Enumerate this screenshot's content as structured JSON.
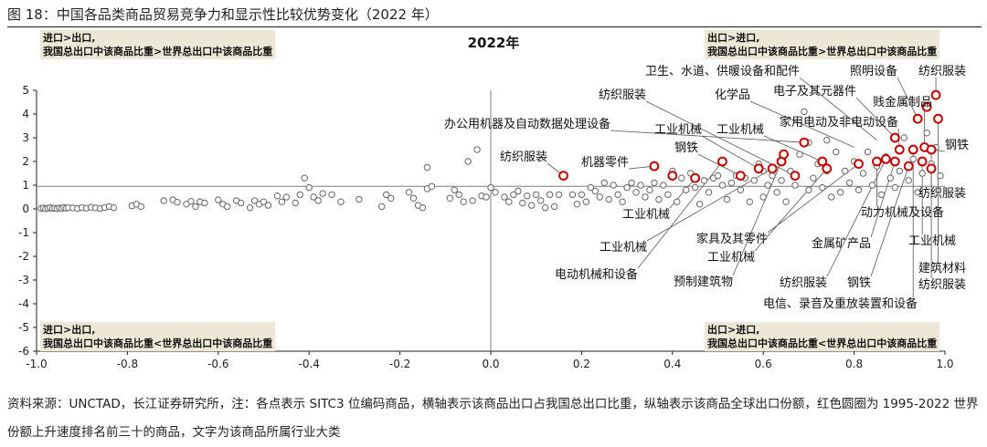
{
  "figure_title": "图 18：中国各品类商品贸易竞争力和显示性比较优势变化（2022 年）",
  "source_note": "资料来源：UNCTAD，长江证券研究所，注：各点表示 SITC3 位编码商品，横轴表示该商品出口占我国总出口比重，纵轴表示该商品全球出口份额，红色圆圈为 1995-2022 世界份额上升速度排名前三十的商品，文字为该商品所属行业大类",
  "quadrants": {
    "top_left": {
      "line1": "进口>出口,",
      "line2": "我国总出口中该商品比重>世界总出口中该商品比重"
    },
    "top_right": {
      "line1": "出口>进口,",
      "line2": "我国总出口中该商品比重>世界总出口中该商品比重"
    },
    "bottom_left": {
      "line1": "进口>出口,",
      "line2": "我国总出口中该商品比重<世界总出口中该商品比重"
    },
    "bottom_right": {
      "line1": "出口>进口,",
      "line2": "我国总出口中该商品比重<世界总出口中该商品比重"
    }
  },
  "colors": {
    "highlight": "#c00000",
    "point": "#666666",
    "axis": "#7f7f7f",
    "label_box": "#ece7d7"
  },
  "chart_data": {
    "type": "scatter",
    "title": "2022年",
    "xlabel": "",
    "ylabel": "",
    "xlim": [
      -1.0,
      1.0
    ],
    "ylim": [
      -6,
      5
    ],
    "xticks": [
      "-1.0",
      "-0.8",
      "-0.6",
      "-0.4",
      "-0.2",
      "0.0",
      "0.2",
      "0.4",
      "0.6",
      "0.8",
      "1.0"
    ],
    "yticks": [
      "5",
      "4",
      "3",
      "2",
      "1",
      "0",
      "-1",
      "-2",
      "-3",
      "-4",
      "-5",
      "-6"
    ],
    "grid": false,
    "series": [
      {
        "points": [
          [
            -0.99,
            0.02
          ],
          [
            -0.985,
            0.04
          ],
          [
            -0.98,
            0.01
          ],
          [
            -0.975,
            0.03
          ],
          [
            -0.97,
            0.05
          ],
          [
            -0.965,
            0.02
          ],
          [
            -0.96,
            0.03
          ],
          [
            -0.955,
            0.01
          ],
          [
            -0.95,
            0.04
          ],
          [
            -0.945,
            0.02
          ],
          [
            -0.94,
            0.06
          ],
          [
            -0.935,
            0.03
          ],
          [
            -0.93,
            0.05
          ],
          [
            -0.92,
            0.04
          ],
          [
            -0.91,
            0.02
          ],
          [
            -0.9,
            0.05
          ],
          [
            -0.89,
            0.03
          ],
          [
            -0.88,
            0.07
          ],
          [
            -0.87,
            0.04
          ],
          [
            -0.86,
            0.02
          ],
          [
            -0.85,
            0.06
          ],
          [
            -0.84,
            0.1
          ],
          [
            -0.83,
            0.05
          ],
          [
            -0.79,
            0.13
          ],
          [
            -0.78,
            0.2
          ],
          [
            -0.77,
            0.1
          ],
          [
            -0.72,
            0.35
          ],
          [
            -0.7,
            0.38
          ],
          [
            -0.69,
            0.28
          ],
          [
            -0.67,
            0.2
          ],
          [
            -0.66,
            0.32
          ],
          [
            -0.65,
            0.1
          ],
          [
            -0.64,
            0.3
          ],
          [
            -0.63,
            0.25
          ],
          [
            -0.6,
            0.38
          ],
          [
            -0.59,
            0.2
          ],
          [
            -0.58,
            0.1
          ],
          [
            -0.56,
            0.35
          ],
          [
            -0.55,
            0.25
          ],
          [
            -0.53,
            0.05
          ],
          [
            -0.52,
            0.35
          ],
          [
            -0.51,
            0.2
          ],
          [
            -0.5,
            0.3
          ],
          [
            -0.49,
            0.15
          ],
          [
            -0.47,
            0.55
          ],
          [
            -0.46,
            0.3
          ],
          [
            -0.45,
            0.5
          ],
          [
            -0.43,
            0.25
          ],
          [
            -0.42,
            0.6
          ],
          [
            -0.41,
            1.3
          ],
          [
            -0.4,
            0.9
          ],
          [
            -0.39,
            0.5
          ],
          [
            -0.38,
            0.35
          ],
          [
            -0.37,
            0.65
          ],
          [
            -0.35,
            0.6
          ],
          [
            -0.33,
            0.3
          ],
          [
            -0.29,
            0.4
          ],
          [
            -0.24,
            0.1
          ],
          [
            -0.23,
            0.6
          ],
          [
            -0.22,
            0.45
          ],
          [
            -0.18,
            0.7
          ],
          [
            -0.17,
            0.45
          ],
          [
            -0.16,
            0.15
          ],
          [
            -0.15,
            0.05
          ],
          [
            -0.14,
            0.85
          ],
          [
            -0.14,
            1.75
          ],
          [
            -0.13,
            0.95
          ],
          [
            -0.09,
            0.45
          ],
          [
            -0.08,
            0.8
          ],
          [
            -0.07,
            0.6
          ],
          [
            -0.06,
            0.3
          ],
          [
            -0.05,
            2.0
          ],
          [
            -0.04,
            0.35
          ],
          [
            -0.03,
            2.5
          ],
          [
            -0.02,
            0.55
          ],
          [
            -0.01,
            0.5
          ],
          [
            0.0,
            0.9
          ],
          [
            0.01,
            0.7
          ],
          [
            0.03,
            0.5
          ],
          [
            0.04,
            0.3
          ],
          [
            0.05,
            0.6
          ],
          [
            0.06,
            0.75
          ],
          [
            0.07,
            0.25
          ],
          [
            0.08,
            0.55
          ],
          [
            0.09,
            0.15
          ],
          [
            0.1,
            0.6
          ],
          [
            0.11,
            0.35
          ],
          [
            0.12,
            0.05
          ],
          [
            0.13,
            0.6
          ],
          [
            0.14,
            0.1
          ],
          [
            0.15,
            0.6
          ],
          [
            0.18,
            0.6
          ],
          [
            0.19,
            0.2
          ],
          [
            0.2,
            0.6
          ],
          [
            0.21,
            0.3
          ],
          [
            0.22,
            0.9
          ],
          [
            0.23,
            0.75
          ],
          [
            0.24,
            0.5
          ],
          [
            0.25,
            1.1
          ],
          [
            0.26,
            0.4
          ],
          [
            0.27,
            1.0
          ],
          [
            0.28,
            0.6
          ],
          [
            0.29,
            0.3
          ],
          [
            0.3,
            0.9
          ],
          [
            0.31,
            1.1
          ],
          [
            0.32,
            0.7
          ],
          [
            0.33,
            1.0
          ],
          [
            0.34,
            0.5
          ],
          [
            0.35,
            0.8
          ],
          [
            0.36,
            1.1
          ],
          [
            0.37,
            0.4
          ],
          [
            0.38,
            1.0
          ],
          [
            0.39,
            0.6
          ],
          [
            0.4,
            1.6
          ],
          [
            0.41,
            0.3
          ],
          [
            0.42,
            1.3
          ],
          [
            0.43,
            0.8
          ],
          [
            0.44,
            1.5
          ],
          [
            0.45,
            0.9
          ],
          [
            0.46,
            0.2
          ],
          [
            0.47,
            1.2
          ],
          [
            0.48,
            0.7
          ],
          [
            0.49,
            1.3
          ],
          [
            0.5,
            1.4
          ],
          [
            0.51,
            1.0
          ],
          [
            0.52,
            0.4
          ],
          [
            0.53,
            1.1
          ],
          [
            0.54,
            1.4
          ],
          [
            0.55,
            0.8
          ],
          [
            0.56,
            1.3
          ],
          [
            0.57,
            0.3
          ],
          [
            0.58,
            1.2
          ],
          [
            0.59,
            1.9
          ],
          [
            0.6,
            0.5
          ],
          [
            0.6,
            1.6
          ],
          [
            0.61,
            1.0
          ],
          [
            0.62,
            1.4
          ],
          [
            0.63,
            0.7
          ],
          [
            0.64,
            1.2
          ],
          [
            0.64,
            2.0
          ],
          [
            0.65,
            0.3
          ],
          [
            0.66,
            1.6
          ],
          [
            0.67,
            1.0
          ],
          [
            0.68,
            2.3
          ],
          [
            0.69,
            4.1
          ],
          [
            0.7,
            0.8
          ],
          [
            0.7,
            2.8
          ],
          [
            0.71,
            1.3
          ],
          [
            0.72,
            1.9
          ],
          [
            0.73,
            0.9
          ],
          [
            0.74,
            1.6
          ],
          [
            0.74,
            2.9
          ],
          [
            0.75,
            0.5
          ],
          [
            0.76,
            2.4
          ],
          [
            0.77,
            0.7
          ],
          [
            0.78,
            1.6
          ],
          [
            0.79,
            1.1
          ],
          [
            0.8,
            2.0
          ],
          [
            0.81,
            0.8
          ],
          [
            0.82,
            1.5
          ],
          [
            0.83,
            2.4
          ],
          [
            0.84,
            1.0
          ],
          [
            0.85,
            1.8
          ],
          [
            0.86,
            0.6
          ],
          [
            0.87,
            2.2
          ],
          [
            0.88,
            1.3
          ],
          [
            0.89,
            0.9
          ],
          [
            0.9,
            1.6
          ],
          [
            0.91,
            3.0
          ],
          [
            0.92,
            1.2
          ],
          [
            0.93,
            2.1
          ],
          [
            0.94,
            0.7
          ],
          [
            0.95,
            1.5
          ],
          [
            0.96,
            3.2
          ],
          [
            0.97,
            1.9
          ],
          [
            0.98,
            2.6
          ],
          [
            0.99,
            1.4
          ]
        ]
      },
      {
        "name": "highlight",
        "points": [
          [
            0.16,
            1.4
          ],
          [
            0.36,
            1.8
          ],
          [
            0.4,
            1.4
          ],
          [
            0.45,
            1.3
          ],
          [
            0.51,
            2.0
          ],
          [
            0.55,
            1.4
          ],
          [
            0.59,
            1.7
          ],
          [
            0.62,
            1.7
          ],
          [
            0.64,
            2.0
          ],
          [
            0.645,
            2.3
          ],
          [
            0.67,
            1.4
          ],
          [
            0.69,
            2.8
          ],
          [
            0.73,
            2.0
          ],
          [
            0.74,
            1.7
          ],
          [
            0.81,
            1.9
          ],
          [
            0.85,
            2.0
          ],
          [
            0.87,
            2.1
          ],
          [
            0.89,
            2.0
          ],
          [
            0.89,
            3.0
          ],
          [
            0.9,
            2.5
          ],
          [
            0.92,
            1.8
          ],
          [
            0.93,
            2.5
          ],
          [
            0.94,
            3.8
          ],
          [
            0.95,
            2.0
          ],
          [
            0.955,
            2.6
          ],
          [
            0.96,
            4.3
          ],
          [
            0.97,
            1.7
          ],
          [
            0.97,
            2.5
          ],
          [
            0.98,
            4.8
          ],
          [
            0.985,
            3.8
          ]
        ]
      }
    ],
    "annotations": [
      {
        "text": "卫生、水道、供暖设备和配件",
        "x": 0.85,
        "y": 2.9
      },
      {
        "text": "照明设备",
        "x": 0.94,
        "y": 3.8
      },
      {
        "text": "纺织服装",
        "x": 0.98,
        "y": 4.8
      },
      {
        "text": "电子及其元器件",
        "x": 0.89,
        "y": 3.0
      },
      {
        "text": "化学品",
        "x": 0.8,
        "y": 2.6
      },
      {
        "text": "贱金属制品",
        "x": 0.955,
        "y": 2.6
      },
      {
        "text": "纺织服装",
        "x": 0.67,
        "y": 1.4
      },
      {
        "text": "办公用机器及自动数据处理设备",
        "x": 0.69,
        "y": 2.8
      },
      {
        "text": "家用电动及非电动设备",
        "x": 0.9,
        "y": 2.5
      },
      {
        "text": "工业机械",
        "x": 0.59,
        "y": 1.7
      },
      {
        "text": "工业机械",
        "x": 0.73,
        "y": 2.0
      },
      {
        "text": "钢铁",
        "x": 0.55,
        "y": 1.4
      },
      {
        "text": "钢铁",
        "x": 0.97,
        "y": 2.5
      },
      {
        "text": "纺织服装",
        "x": 0.16,
        "y": 1.4
      },
      {
        "text": "机器零件",
        "x": 0.36,
        "y": 1.8
      },
      {
        "text": "纺织服装",
        "x": 0.97,
        "y": 1.7
      },
      {
        "text": "工业机械",
        "x": 0.45,
        "y": 1.3
      },
      {
        "text": "动力机械及设备",
        "x": 0.85,
        "y": 2.0
      },
      {
        "text": "工业机械",
        "x": 0.95,
        "y": 2.0
      },
      {
        "text": "工业机械",
        "x": 0.62,
        "y": 1.7
      },
      {
        "text": "家具及其零件",
        "x": 0.81,
        "y": 1.9
      },
      {
        "text": "金属矿产品",
        "x": 0.89,
        "y": 2.0
      },
      {
        "text": "工业机械",
        "x": 0.74,
        "y": 1.7
      },
      {
        "text": "电动机械和设备",
        "x": 0.51,
        "y": 2.0
      },
      {
        "text": "预制建筑物",
        "x": 0.64,
        "y": 2.0
      },
      {
        "text": "纺织服装",
        "x": 0.87,
        "y": 2.1
      },
      {
        "text": "钢铁",
        "x": 0.92,
        "y": 1.8
      },
      {
        "text": "建筑材料",
        "x": 0.985,
        "y": 3.8
      },
      {
        "text": "纺织服装",
        "x": 0.97,
        "y": 2.5
      },
      {
        "text": "电信、录音及重放装置和设备",
        "x": 0.93,
        "y": 2.5
      }
    ]
  }
}
